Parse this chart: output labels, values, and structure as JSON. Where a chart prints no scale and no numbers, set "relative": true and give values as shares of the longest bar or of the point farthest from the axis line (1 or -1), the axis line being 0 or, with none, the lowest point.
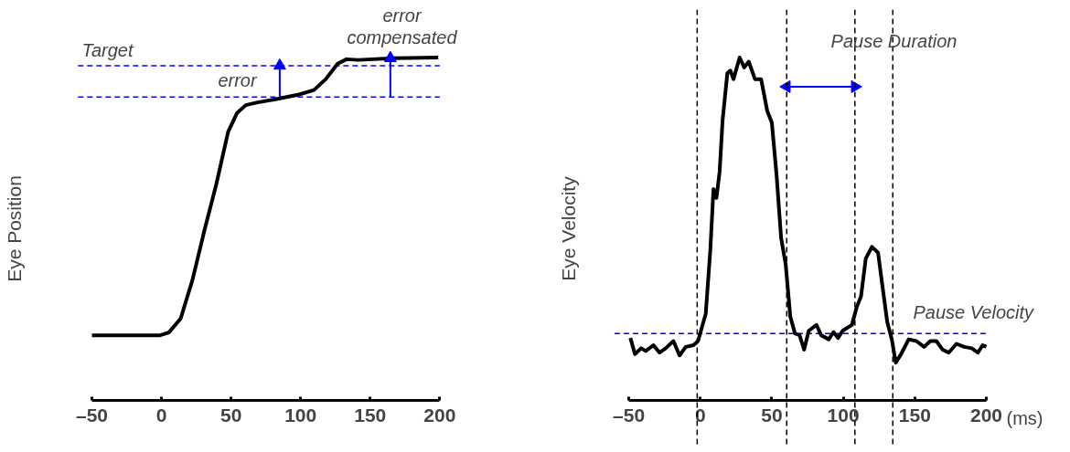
{
  "chart_data": [
    {
      "type": "line",
      "relative": true,
      "ylabel": "Eye Position",
      "xlim": [
        -50,
        200
      ],
      "xticks": [
        {
          "value": -50,
          "label": "–50"
        },
        0,
        50,
        100,
        150,
        200
      ],
      "grid": false,
      "tick_labels": "x",
      "series": [
        {
          "color": "#000000",
          "x": [
            -50,
            -1,
            5.3,
            13.8,
            22.3,
            30.9,
            39.4,
            47.9,
            54.3,
            60.6,
            69.1,
            81.9,
            98.9,
            109.6,
            118.1,
            126.6,
            133,
            141.5,
            167,
            198.9
          ],
          "values": [
            0.189,
            0.189,
            0.197,
            0.238,
            0.351,
            0.496,
            0.63,
            0.783,
            0.838,
            0.861,
            0.869,
            0.878,
            0.892,
            0.905,
            0.937,
            0.982,
            0.995,
            0.993,
            0.998,
            1.0
          ]
        },
        {
          "color": "#0000ff",
          "marker": "triangle",
          "x": [
            85,
            85
          ],
          "values": [
            0.885,
            0.976
          ]
        },
        {
          "color": "#0000ff",
          "marker": "triangle",
          "x": [
            164.5,
            164.5
          ],
          "values": [
            0.885,
            0.998
          ]
        }
      ],
      "ref_lines": [
        {
          "axis": "y",
          "value": 0.976,
          "color": "#0000ff",
          "line_style": "dashed"
        },
        {
          "axis": "y",
          "value": 0.885,
          "color": "#0000ff",
          "line_style": "dashed"
        }
      ],
      "annotations": [
        "Target",
        "error",
        "error\ncompensated"
      ]
    },
    {
      "type": "line",
      "relative": true,
      "ylabel": "Eye Velocity",
      "xlabel": "(ms)",
      "xlim": [
        -50,
        200
      ],
      "xticks": [
        {
          "value": -50,
          "label": "–50"
        },
        0,
        50,
        100,
        150,
        200
      ],
      "grid": false,
      "tick_labels": "x",
      "series": [
        {
          "color": "#000000",
          "x": [
            -48.9,
            -45.7,
            -41.4,
            -38.2,
            -32.8,
            -28.5,
            -24.2,
            -18.8,
            -14.5,
            -10.2,
            -4.8,
            -1.6,
            3.8,
            7.0,
            9.2,
            11.3,
            13.5,
            15.6,
            18.9,
            21.0,
            23.2,
            27.5,
            30.7,
            33.9,
            38.2,
            42.5,
            46.8,
            50.0,
            53.3,
            56.5,
            59.7,
            62.9,
            66.2,
            69.4,
            72.6,
            75.8,
            81.2,
            84.5,
            89.8,
            93.1,
            96.3,
            99.5,
            106.0,
            109.2,
            112.4,
            115.7,
            120.0,
            124.3,
            127.5,
            130.7,
            133.9,
            136.7,
            140.4,
            145.7,
            151.1,
            156.5,
            160.8,
            165.1,
            169.4,
            173.7,
            179.1,
            184.5,
            189.8,
            194.1,
            197.4,
            200.0
          ],
          "values": [
            0.181,
            0.134,
            0.151,
            0.143,
            0.16,
            0.138,
            0.151,
            0.172,
            0.13,
            0.155,
            0.16,
            0.172,
            0.252,
            0.439,
            0.616,
            0.59,
            0.667,
            0.818,
            0.954,
            0.962,
            0.937,
            1.0,
            0.971,
            0.988,
            0.937,
            0.937,
            0.844,
            0.81,
            0.658,
            0.473,
            0.396,
            0.244,
            0.194,
            0.189,
            0.147,
            0.202,
            0.219,
            0.189,
            0.177,
            0.198,
            0.181,
            0.202,
            0.219,
            0.269,
            0.303,
            0.413,
            0.447,
            0.43,
            0.328,
            0.228,
            0.177,
            0.109,
            0.134,
            0.177,
            0.172,
            0.155,
            0.172,
            0.172,
            0.147,
            0.138,
            0.164,
            0.155,
            0.151,
            0.138,
            0.16,
            0.155
          ]
        },
        {
          "color": "#0000ff",
          "marker": "triangle",
          "x": [
            60.4,
            108.1
          ],
          "values": [
            0.915,
            0.915
          ]
        }
      ],
      "ref_lines": [
        {
          "axis": "y",
          "value": 0.194,
          "color": "#0000ff",
          "line_style": "dashed"
        },
        {
          "axis": "x",
          "value": -2.2,
          "color": "#000000",
          "line_style": "dashed"
        },
        {
          "axis": "x",
          "value": 60.4,
          "color": "#000000",
          "line_style": "dashed"
        },
        {
          "axis": "x",
          "value": 108.1,
          "color": "#000000",
          "line_style": "dashed"
        },
        {
          "axis": "x",
          "value": 134.6,
          "color": "#000000",
          "line_style": "dashed"
        }
      ],
      "annotations": [
        "Pause Duration",
        "Pause Velocity"
      ]
    }
  ]
}
